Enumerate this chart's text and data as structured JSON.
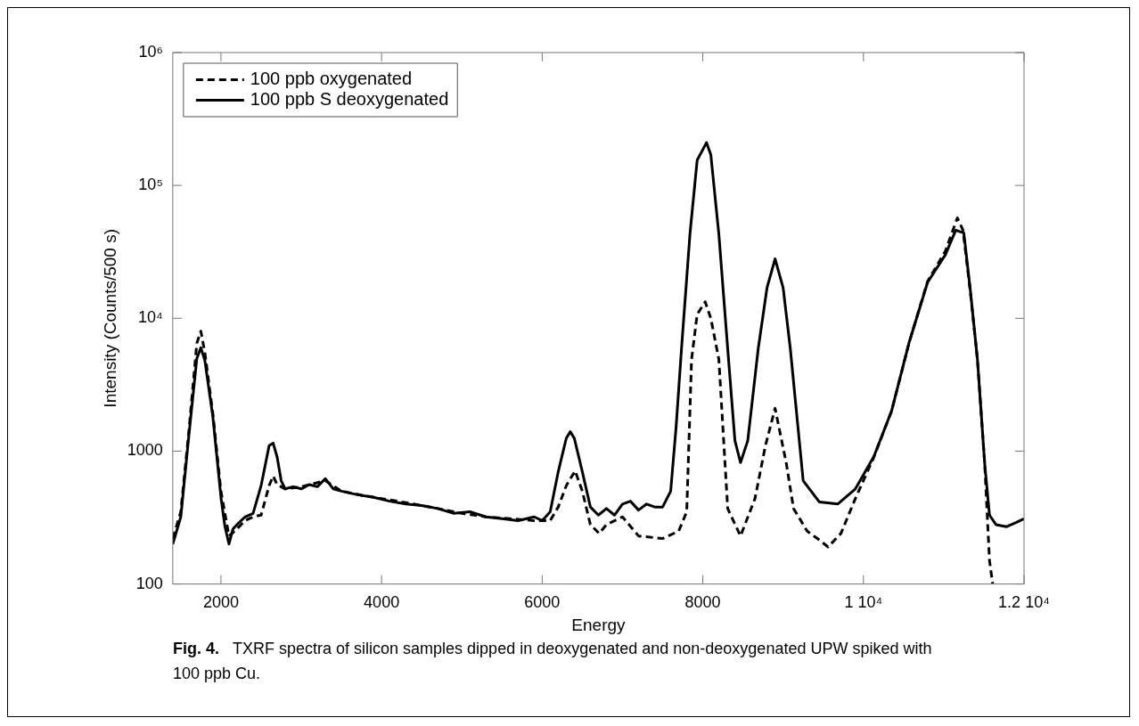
{
  "chart_data": {
    "type": "line",
    "xlabel": "Energy",
    "ylabel": "Intensity (Counts/500 s)",
    "log": "y",
    "grid": false,
    "legend": "top left",
    "marker": "none",
    "xlim": [
      1400,
      12000
    ],
    "xticks": [
      2000,
      4000,
      6000,
      8000,
      {
        "value": 10000,
        "label": "1 10⁴"
      },
      {
        "value": 12000,
        "label": "1.2 10⁴"
      }
    ],
    "ylim": [
      100,
      1000000
    ],
    "yticks": [
      100,
      1000,
      {
        "value": 10000,
        "label": "10⁴"
      },
      {
        "value": 100000,
        "label": "10⁵"
      },
      {
        "value": 1000000,
        "label": "10⁶"
      }
    ],
    "series": [
      {
        "name": "100 ppb oxygenated",
        "color": "#000000",
        "line_style": "dashed",
        "x": [
          1400,
          1500,
          1600,
          1700,
          1750,
          1800,
          1900,
          2000,
          2100,
          2200,
          2300,
          2400,
          2500,
          2600,
          2650,
          2700,
          2800,
          3000,
          3300,
          3500,
          3800,
          4100,
          4400,
          4700,
          5000,
          5300,
          5600,
          5900,
          6100,
          6200,
          6300,
          6410,
          6500,
          6600,
          6710,
          6800,
          7000,
          7200,
          7500,
          7700,
          7800,
          7860,
          7930,
          8030,
          8100,
          8200,
          8310,
          8470,
          8650,
          8780,
          8900,
          9040,
          9130,
          9300,
          9450,
          9560,
          9720,
          9900,
          10130,
          10350,
          10570,
          10800,
          11020,
          11170,
          11240,
          11330,
          11420,
          11510,
          11570,
          11610
        ],
        "values": [
          220,
          350,
          1400,
          6500,
          8000,
          5500,
          1900,
          500,
          230,
          260,
          300,
          320,
          330,
          550,
          650,
          560,
          520,
          540,
          600,
          500,
          460,
          430,
          400,
          370,
          340,
          320,
          310,
          300,
          300,
          380,
          550,
          710,
          500,
          280,
          240,
          280,
          320,
          230,
          220,
          250,
          350,
          4900,
          10700,
          13300,
          10000,
          4900,
          370,
          230,
          440,
          1100,
          2100,
          810,
          370,
          250,
          215,
          190,
          240,
          440,
          900,
          2000,
          6600,
          19000,
          32000,
          57000,
          46000,
          16000,
          4900,
          810,
          150,
          100
        ]
      },
      {
        "name": "100 ppb S deoxygenated",
        "color": "#000000",
        "line_style": "solid",
        "x": [
          1400,
          1500,
          1600,
          1700,
          1750,
          1800,
          1900,
          2000,
          2050,
          2100,
          2150,
          2200,
          2300,
          2400,
          2500,
          2600,
          2650,
          2700,
          2750,
          2800,
          2900,
          3000,
          3100,
          3200,
          3300,
          3400,
          3500,
          3700,
          3900,
          4100,
          4300,
          4500,
          4700,
          4900,
          5100,
          5300,
          5500,
          5700,
          5900,
          6000,
          6100,
          6200,
          6300,
          6350,
          6400,
          6500,
          6600,
          6700,
          6800,
          6900,
          7000,
          7100,
          7200,
          7300,
          7400,
          7500,
          7600,
          7667,
          7735,
          7840,
          7930,
          8046,
          8100,
          8200,
          8310,
          8400,
          8470,
          8560,
          8690,
          8800,
          8900,
          9000,
          9090,
          9250,
          9450,
          9680,
          9900,
          10130,
          10350,
          10570,
          10800,
          11020,
          11150,
          11250,
          11330,
          11420,
          11510,
          11570,
          11650,
          11780,
          11900,
          12000
        ],
        "values": [
          200,
          320,
          1300,
          5000,
          6000,
          4800,
          1800,
          450,
          270,
          200,
          260,
          280,
          320,
          340,
          550,
          1100,
          1150,
          900,
          600,
          520,
          540,
          520,
          560,
          540,
          620,
          520,
          500,
          470,
          450,
          420,
          400,
          390,
          370,
          340,
          350,
          320,
          310,
          300,
          320,
          300,
          350,
          700,
          1250,
          1400,
          1250,
          700,
          380,
          330,
          370,
          330,
          400,
          420,
          360,
          400,
          380,
          380,
          500,
          1500,
          5900,
          43000,
          155000,
          210000,
          170000,
          43000,
          5900,
          1200,
          820,
          1200,
          5900,
          17000,
          28000,
          17000,
          5900,
          600,
          415,
          400,
          520,
          910,
          2000,
          6600,
          18700,
          30000,
          46000,
          44000,
          16600,
          4900,
          810,
          330,
          280,
          270,
          290,
          310
        ]
      }
    ],
    "annotations": [
      "Fig. 4.  TXRF spectra of silicon samples dipped in deoxygenated and non-deoxygenated UPW spiked with 100 ppb Cu."
    ]
  }
}
